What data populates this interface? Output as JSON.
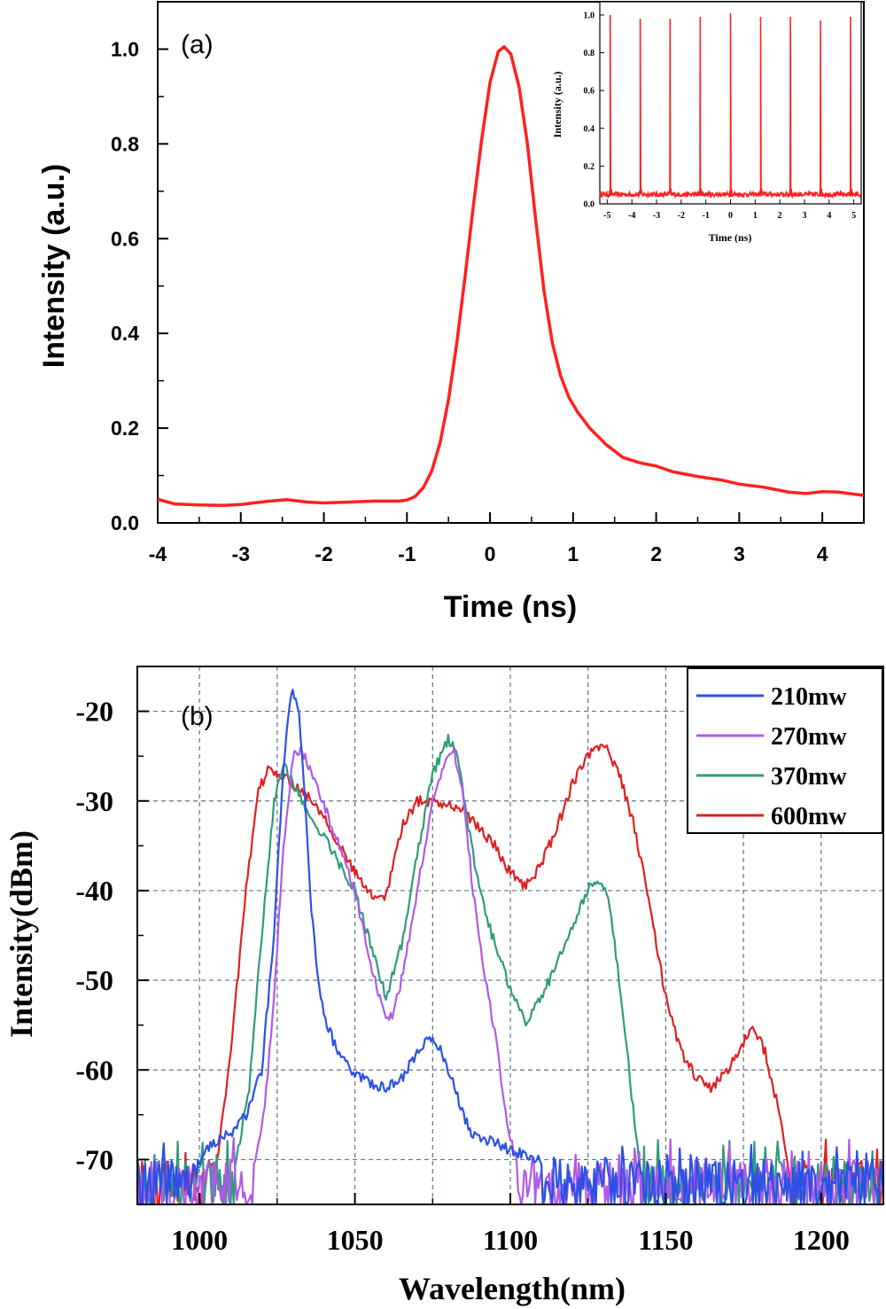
{
  "chart_data": [
    {
      "type": "line",
      "panel_label": "(a)",
      "xlabel": "Time (ns)",
      "ylabel": "Intensity (a.u.)",
      "xlim": [
        -4,
        4.5
      ],
      "ylim": [
        0,
        1.1
      ],
      "xticks": [
        -4,
        -3,
        -2,
        -1,
        0,
        1,
        2,
        3,
        4
      ],
      "yticks": [
        0.0,
        0.2,
        0.4,
        0.6,
        0.8,
        1.0
      ],
      "grid": false,
      "color": "#ff2020",
      "x": [
        -4,
        -3.8,
        -3.5,
        -3.2,
        -3,
        -2.7,
        -2.45,
        -2.2,
        -2,
        -1.7,
        -1.4,
        -1.1,
        -1,
        -0.9,
        -0.8,
        -0.7,
        -0.6,
        -0.5,
        -0.4,
        -0.3,
        -0.2,
        -0.1,
        0,
        0.1,
        0.17,
        0.25,
        0.35,
        0.45,
        0.55,
        0.65,
        0.75,
        0.85,
        0.95,
        1.05,
        1.2,
        1.4,
        1.6,
        1.8,
        2,
        2.2,
        2.5,
        2.8,
        3,
        3.3,
        3.6,
        3.8,
        4,
        4.2,
        4.5
      ],
      "y": [
        0.05,
        0.04,
        0.038,
        0.037,
        0.039,
        0.045,
        0.049,
        0.044,
        0.042,
        0.044,
        0.046,
        0.046,
        0.048,
        0.056,
        0.075,
        0.11,
        0.17,
        0.26,
        0.38,
        0.52,
        0.67,
        0.81,
        0.93,
        0.995,
        1.005,
        0.99,
        0.92,
        0.8,
        0.64,
        0.49,
        0.38,
        0.31,
        0.265,
        0.235,
        0.2,
        0.165,
        0.138,
        0.127,
        0.12,
        0.108,
        0.098,
        0.09,
        0.082,
        0.075,
        0.065,
        0.062,
        0.066,
        0.065,
        0.058
      ]
    },
    {
      "type": "line",
      "role": "inset",
      "xlabel": "Time (ns)",
      "ylabel": "Intensity (a.u.)",
      "xlim": [
        -5.3,
        5.3
      ],
      "ylim": [
        0,
        1.07
      ],
      "xticks": [
        -5,
        -4,
        -3,
        -2,
        -1,
        0,
        1,
        2,
        3,
        4,
        5
      ],
      "yticks": [
        0.0,
        0.2,
        0.4,
        0.6,
        0.8,
        1.0
      ],
      "color": "#ff2020",
      "baseline": 0.05,
      "peak_x": [
        -4.88,
        -3.66,
        -2.45,
        -1.23,
        0,
        1.22,
        2.43,
        3.65,
        4.87
      ],
      "peak_y": [
        1.0,
        0.98,
        0.98,
        0.99,
        1.01,
        0.99,
        0.99,
        0.97,
        0.99
      ]
    },
    {
      "type": "line",
      "panel_label": "(b)",
      "xlabel": "Wavelength(nm)",
      "ylabel": "Intensity(dBm)",
      "xlim": [
        980,
        1220
      ],
      "ylim": [
        -75,
        -15
      ],
      "xticks": [
        1000,
        1050,
        1100,
        1150,
        1200
      ],
      "yticks": [
        -20,
        -30,
        -40,
        -50,
        -60,
        -70
      ],
      "grid": true,
      "legend_position": "top-right",
      "series": [
        {
          "name": "210mw",
          "color": "#2b50e6",
          "x": [
            1000,
            1005,
            1010,
            1015,
            1020,
            1024,
            1026,
            1028,
            1030,
            1032,
            1034,
            1036,
            1038,
            1041,
            1044,
            1047,
            1050,
            1055,
            1060,
            1065,
            1070,
            1074,
            1078,
            1081,
            1084,
            1087,
            1090,
            1095,
            1100,
            1110
          ],
          "y": [
            -70,
            -68,
            -67,
            -65,
            -60,
            -45,
            -32,
            -22,
            -17.5,
            -20,
            -30,
            -42,
            -50,
            -55,
            -57.5,
            -59,
            -60.5,
            -61.5,
            -62,
            -61,
            -58,
            -56.5,
            -58,
            -61,
            -64,
            -67,
            -67.5,
            -68,
            -69,
            -70
          ]
        },
        {
          "name": "270mw",
          "color": "#b05ae8",
          "x": [
            1018,
            1021,
            1024,
            1027,
            1030,
            1033,
            1036,
            1040,
            1045,
            1050,
            1055,
            1060,
            1062,
            1065,
            1070,
            1075,
            1080,
            1082,
            1085,
            1088,
            1092,
            1096,
            1099,
            1102
          ],
          "y": [
            -70,
            -64,
            -52,
            -35,
            -25,
            -24.5,
            -27,
            -30.5,
            -35,
            -40,
            -48,
            -54.5,
            -54,
            -50,
            -40,
            -30,
            -25,
            -24.5,
            -30,
            -40,
            -50,
            -58,
            -66,
            -70
          ]
        },
        {
          "name": "370mw",
          "color": "#2e9b7c",
          "x": [
            1012,
            1016,
            1020,
            1024,
            1027,
            1030,
            1035,
            1040,
            1045,
            1050,
            1055,
            1060,
            1065,
            1070,
            1075,
            1080,
            1083,
            1086,
            1090,
            1095,
            1100,
            1105,
            1110,
            1115,
            1120,
            1125,
            1128,
            1131,
            1134,
            1137,
            1140,
            1142
          ],
          "y": [
            -70,
            -62,
            -45,
            -30,
            -26,
            -28,
            -31.5,
            -34,
            -37,
            -40,
            -46,
            -52,
            -46,
            -36,
            -27,
            -23,
            -25,
            -32,
            -40,
            -46,
            -51,
            -54.5,
            -52,
            -48,
            -44,
            -40,
            -38.5,
            -40,
            -47,
            -56,
            -66,
            -72
          ]
        },
        {
          "name": "600mw",
          "color": "#e02020",
          "x": [
            1005,
            1010,
            1015,
            1019,
            1022,
            1026,
            1030,
            1035,
            1040,
            1045,
            1050,
            1055,
            1060,
            1065,
            1070,
            1075,
            1080,
            1085,
            1090,
            1095,
            1100,
            1105,
            1110,
            1115,
            1120,
            1125,
            1130,
            1135,
            1140,
            1145,
            1150,
            1155,
            1160,
            1165,
            1170,
            1175,
            1178,
            1182,
            1186,
            1189,
            1191
          ],
          "y": [
            -72,
            -58,
            -40,
            -29,
            -26.5,
            -27,
            -28,
            -29.5,
            -31.5,
            -35,
            -38,
            -40.5,
            -40.5,
            -33,
            -30,
            -30,
            -30.5,
            -31,
            -33,
            -35,
            -38,
            -39.5,
            -37,
            -33,
            -28,
            -25,
            -23.5,
            -27,
            -33,
            -42,
            -52,
            -58,
            -61,
            -62,
            -60,
            -57,
            -55,
            -58,
            -64,
            -70,
            -75
          ]
        }
      ]
    }
  ]
}
